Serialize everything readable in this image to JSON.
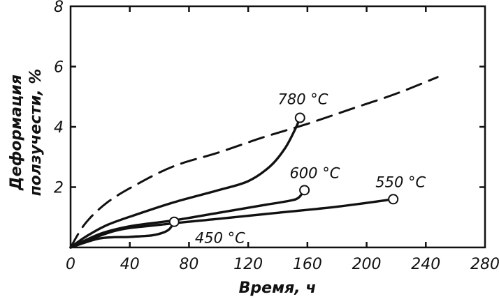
{
  "chart_data": {
    "type": "line",
    "title": "",
    "xlabel": "Время, ч",
    "ylabel_lines": [
      "Деформация",
      "ползучести, %"
    ],
    "xlim": [
      0,
      280
    ],
    "ylim": [
      0,
      8
    ],
    "x_ticks": [
      0,
      40,
      80,
      120,
      160,
      200,
      240,
      280
    ],
    "y_ticks": [
      0,
      2,
      4,
      6,
      8
    ],
    "x_tick_labels": [
      "0",
      "40",
      "80",
      "120",
      "160",
      "200",
      "240",
      "280"
    ],
    "y_tick_labels": [
      "0",
      "2",
      "4",
      "6",
      "8"
    ],
    "grid": false,
    "series": [
      {
        "name": "780 °C",
        "style": "solid",
        "points": [
          [
            0,
            0
          ],
          [
            10,
            0.35
          ],
          [
            25,
            0.75
          ],
          [
            45,
            1.1
          ],
          [
            70,
            1.5
          ],
          [
            100,
            1.9
          ],
          [
            120,
            2.2
          ],
          [
            135,
            2.7
          ],
          [
            145,
            3.3
          ],
          [
            152,
            3.95
          ],
          [
            155,
            4.3
          ]
        ],
        "rupture": [
          155,
          4.3
        ]
      },
      {
        "name": "",
        "style": "dashed",
        "points": [
          [
            0,
            0
          ],
          [
            10,
            0.8
          ],
          [
            25,
            1.5
          ],
          [
            45,
            2.1
          ],
          [
            70,
            2.7
          ],
          [
            100,
            3.15
          ],
          [
            130,
            3.65
          ],
          [
            160,
            4.1
          ],
          [
            190,
            4.6
          ],
          [
            220,
            5.1
          ],
          [
            248,
            5.65
          ]
        ]
      },
      {
        "name": "600 °C",
        "style": "solid",
        "points": [
          [
            0,
            0
          ],
          [
            20,
            0.45
          ],
          [
            40,
            0.7
          ],
          [
            70,
            0.9
          ],
          [
            100,
            1.15
          ],
          [
            130,
            1.4
          ],
          [
            148,
            1.55
          ],
          [
            154,
            1.65
          ],
          [
            158,
            1.9
          ]
        ],
        "rupture": [
          158,
          1.9
        ]
      },
      {
        "name": "550 °C",
        "style": "solid",
        "points": [
          [
            0,
            0
          ],
          [
            30,
            0.55
          ],
          [
            60,
            0.75
          ],
          [
            100,
            0.95
          ],
          [
            140,
            1.15
          ],
          [
            180,
            1.35
          ],
          [
            218,
            1.6
          ]
        ],
        "rupture": [
          218,
          1.6
        ]
      },
      {
        "name": "450 °C",
        "style": "solid",
        "points": [
          [
            0,
            0
          ],
          [
            20,
            0.3
          ],
          [
            40,
            0.35
          ],
          [
            55,
            0.4
          ],
          [
            63,
            0.5
          ],
          [
            67,
            0.62
          ],
          [
            70,
            0.85
          ]
        ],
        "rupture": [
          70,
          0.85
        ]
      }
    ],
    "labels": [
      {
        "text": "780 °C",
        "x": 140,
        "y": 4.75
      },
      {
        "text": "600 °C",
        "x": 148,
        "y": 2.3
      },
      {
        "text": "550 °C",
        "x": 206,
        "y": 2.0
      },
      {
        "text": "450 °C",
        "x": 84,
        "y": 0.15
      }
    ],
    "colors": {
      "ink": "#111111",
      "background": "#ffffff"
    }
  }
}
